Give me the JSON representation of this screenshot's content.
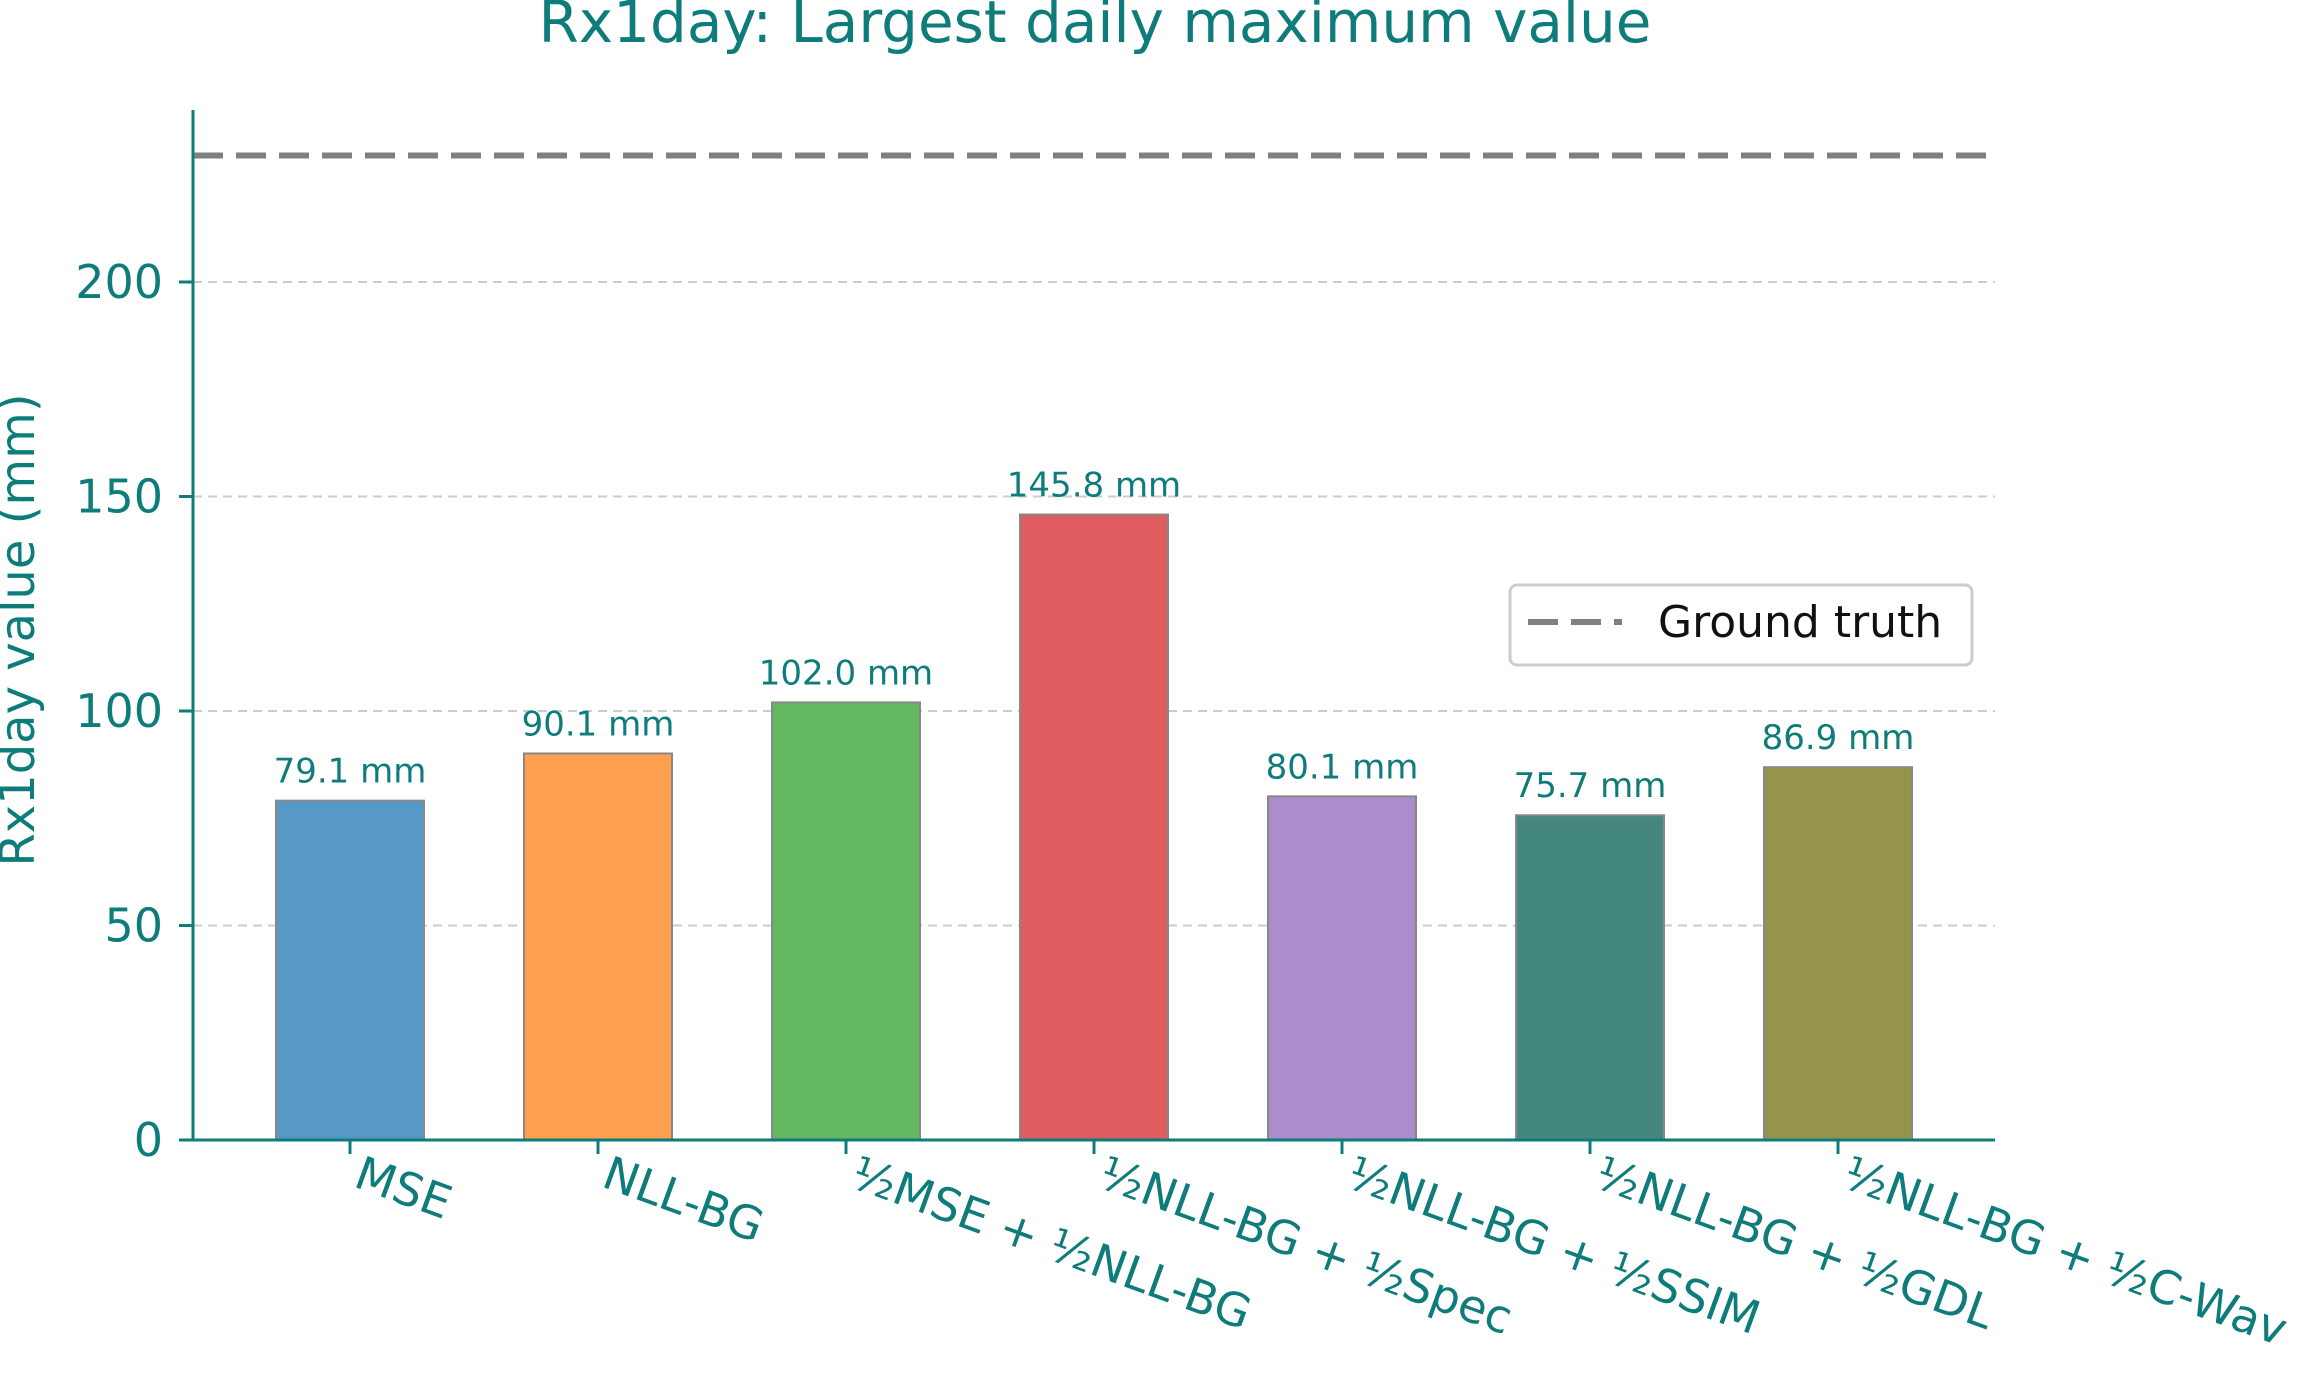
{
  "chart_data": {
    "type": "bar",
    "title": "Rx1day: Largest daily maximum value",
    "xlabel": "",
    "ylabel": "Rx1day value (mm)",
    "ylim": [
      0,
      240
    ],
    "yticks": [
      "0",
      "50",
      "100",
      "150",
      "200"
    ],
    "grid": "y-dashed",
    "categories": [
      "MSE",
      "NLL-BG",
      "½MSE + ½NLL-BG",
      "½NLL-BG + ½Spec",
      "½NLL-BG + ½SSIM",
      "½NLL-BG + ½GDL",
      "½NLL-BG + ½C-Wav"
    ],
    "values": [
      79.1,
      90.1,
      102.0,
      145.8,
      80.1,
      75.7,
      86.9
    ],
    "value_labels": [
      "79.1 mm",
      "90.1 mm",
      "102.0 mm",
      "145.8 mm",
      "80.1 mm",
      "75.7 mm",
      "86.9 mm"
    ],
    "bar_colors": [
      "#5799c6",
      "#ffa04f",
      "#63b860",
      "#df5d5e",
      "#ad8ccb",
      "#43877f",
      "#94944b"
    ],
    "reference_line": {
      "name": "Ground truth",
      "value": 229.5,
      "style": "dashed",
      "color": "#808080"
    },
    "legend_position": "right"
  },
  "colors": {
    "text": "#0e7c7b",
    "axis": "#0e7c7b",
    "grid": "#cccccc"
  }
}
